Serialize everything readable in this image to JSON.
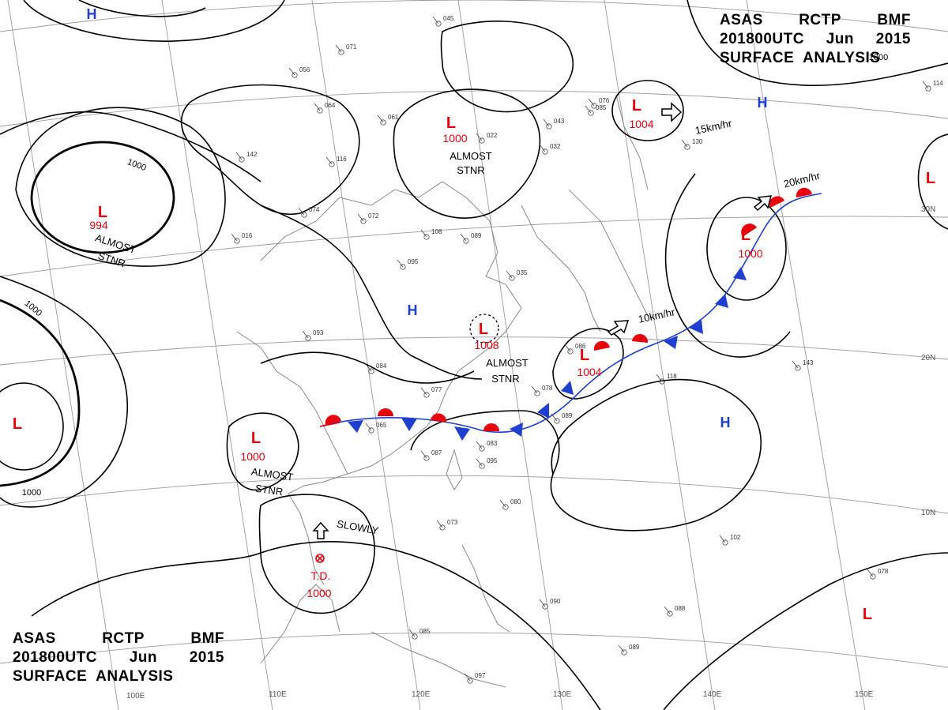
{
  "header_top": {
    "line1": [
      "ASAS",
      "RCTP",
      "BMF"
    ],
    "line2": [
      "201800UTC",
      "Jun",
      "2015"
    ],
    "line3": "SURFACE  ANALYSIS"
  },
  "header_bottom": {
    "line1": [
      "ASAS",
      "RCTP",
      "BMF"
    ],
    "line2": [
      "201800UTC",
      "Jun",
      "2015"
    ],
    "line3": "SURFACE  ANALYSIS"
  },
  "colors": {
    "low": "#e8000b",
    "high": "#1f3fd0",
    "warm_front": "#e8000b",
    "cold_front": "#1f3fd0",
    "isobar": "#000000",
    "grid": "#9a9a9a",
    "coast": "#8a8a8a"
  },
  "isobar_labels": [
    "1000",
    "1000",
    "1000",
    "1000"
  ],
  "lows": [
    {
      "symbol": "L",
      "pressure": "994",
      "note": [
        "ALMOST",
        "STNR"
      ]
    },
    {
      "symbol": "L",
      "pressure": "1000",
      "note": [
        "ALMOST",
        "STNR"
      ]
    },
    {
      "symbol": "L",
      "pressure": "1004",
      "note": []
    },
    {
      "symbol": "L",
      "pressure": "1000",
      "note": [
        "ALMOST",
        "STNR"
      ]
    },
    {
      "symbol": "L",
      "pressure": "1008",
      "note": [
        "ALMOST",
        "STNR"
      ]
    },
    {
      "symbol": "L",
      "pressure": "1004",
      "note": []
    },
    {
      "symbol": "L",
      "pressure": "1000",
      "note": []
    },
    {
      "symbol": "L",
      "pressure": "",
      "note": []
    },
    {
      "symbol": "L",
      "pressure": "",
      "note": []
    },
    {
      "symbol": "L",
      "pressure": "",
      "note": []
    }
  ],
  "highs": [
    "H",
    "H",
    "H",
    "H"
  ],
  "tropical_depression": {
    "label": "T.D.",
    "pressure": "1000",
    "motion": "SLOWLY"
  },
  "motions": [
    "15km/hr",
    "20km/hr",
    "10km/hr"
  ],
  "longitude_labels": [
    "100E",
    "110E",
    "120E",
    "130E",
    "140E",
    "150E"
  ],
  "latitude_labels": [
    "30N",
    "20N",
    "10N"
  ],
  "station_samples": [
    "045",
    "071",
    "056",
    "064",
    "061",
    "022",
    "043",
    "032",
    "085",
    "130",
    "114",
    "142",
    "116",
    "074",
    "072",
    "016",
    "108",
    "089",
    "095",
    "035",
    "086",
    "118",
    "143",
    "093",
    "084",
    "077",
    "065",
    "078",
    "089",
    "083",
    "095",
    "087",
    "080",
    "073",
    "102",
    "078",
    "088",
    "089",
    "090",
    "085",
    "076",
    "097"
  ]
}
